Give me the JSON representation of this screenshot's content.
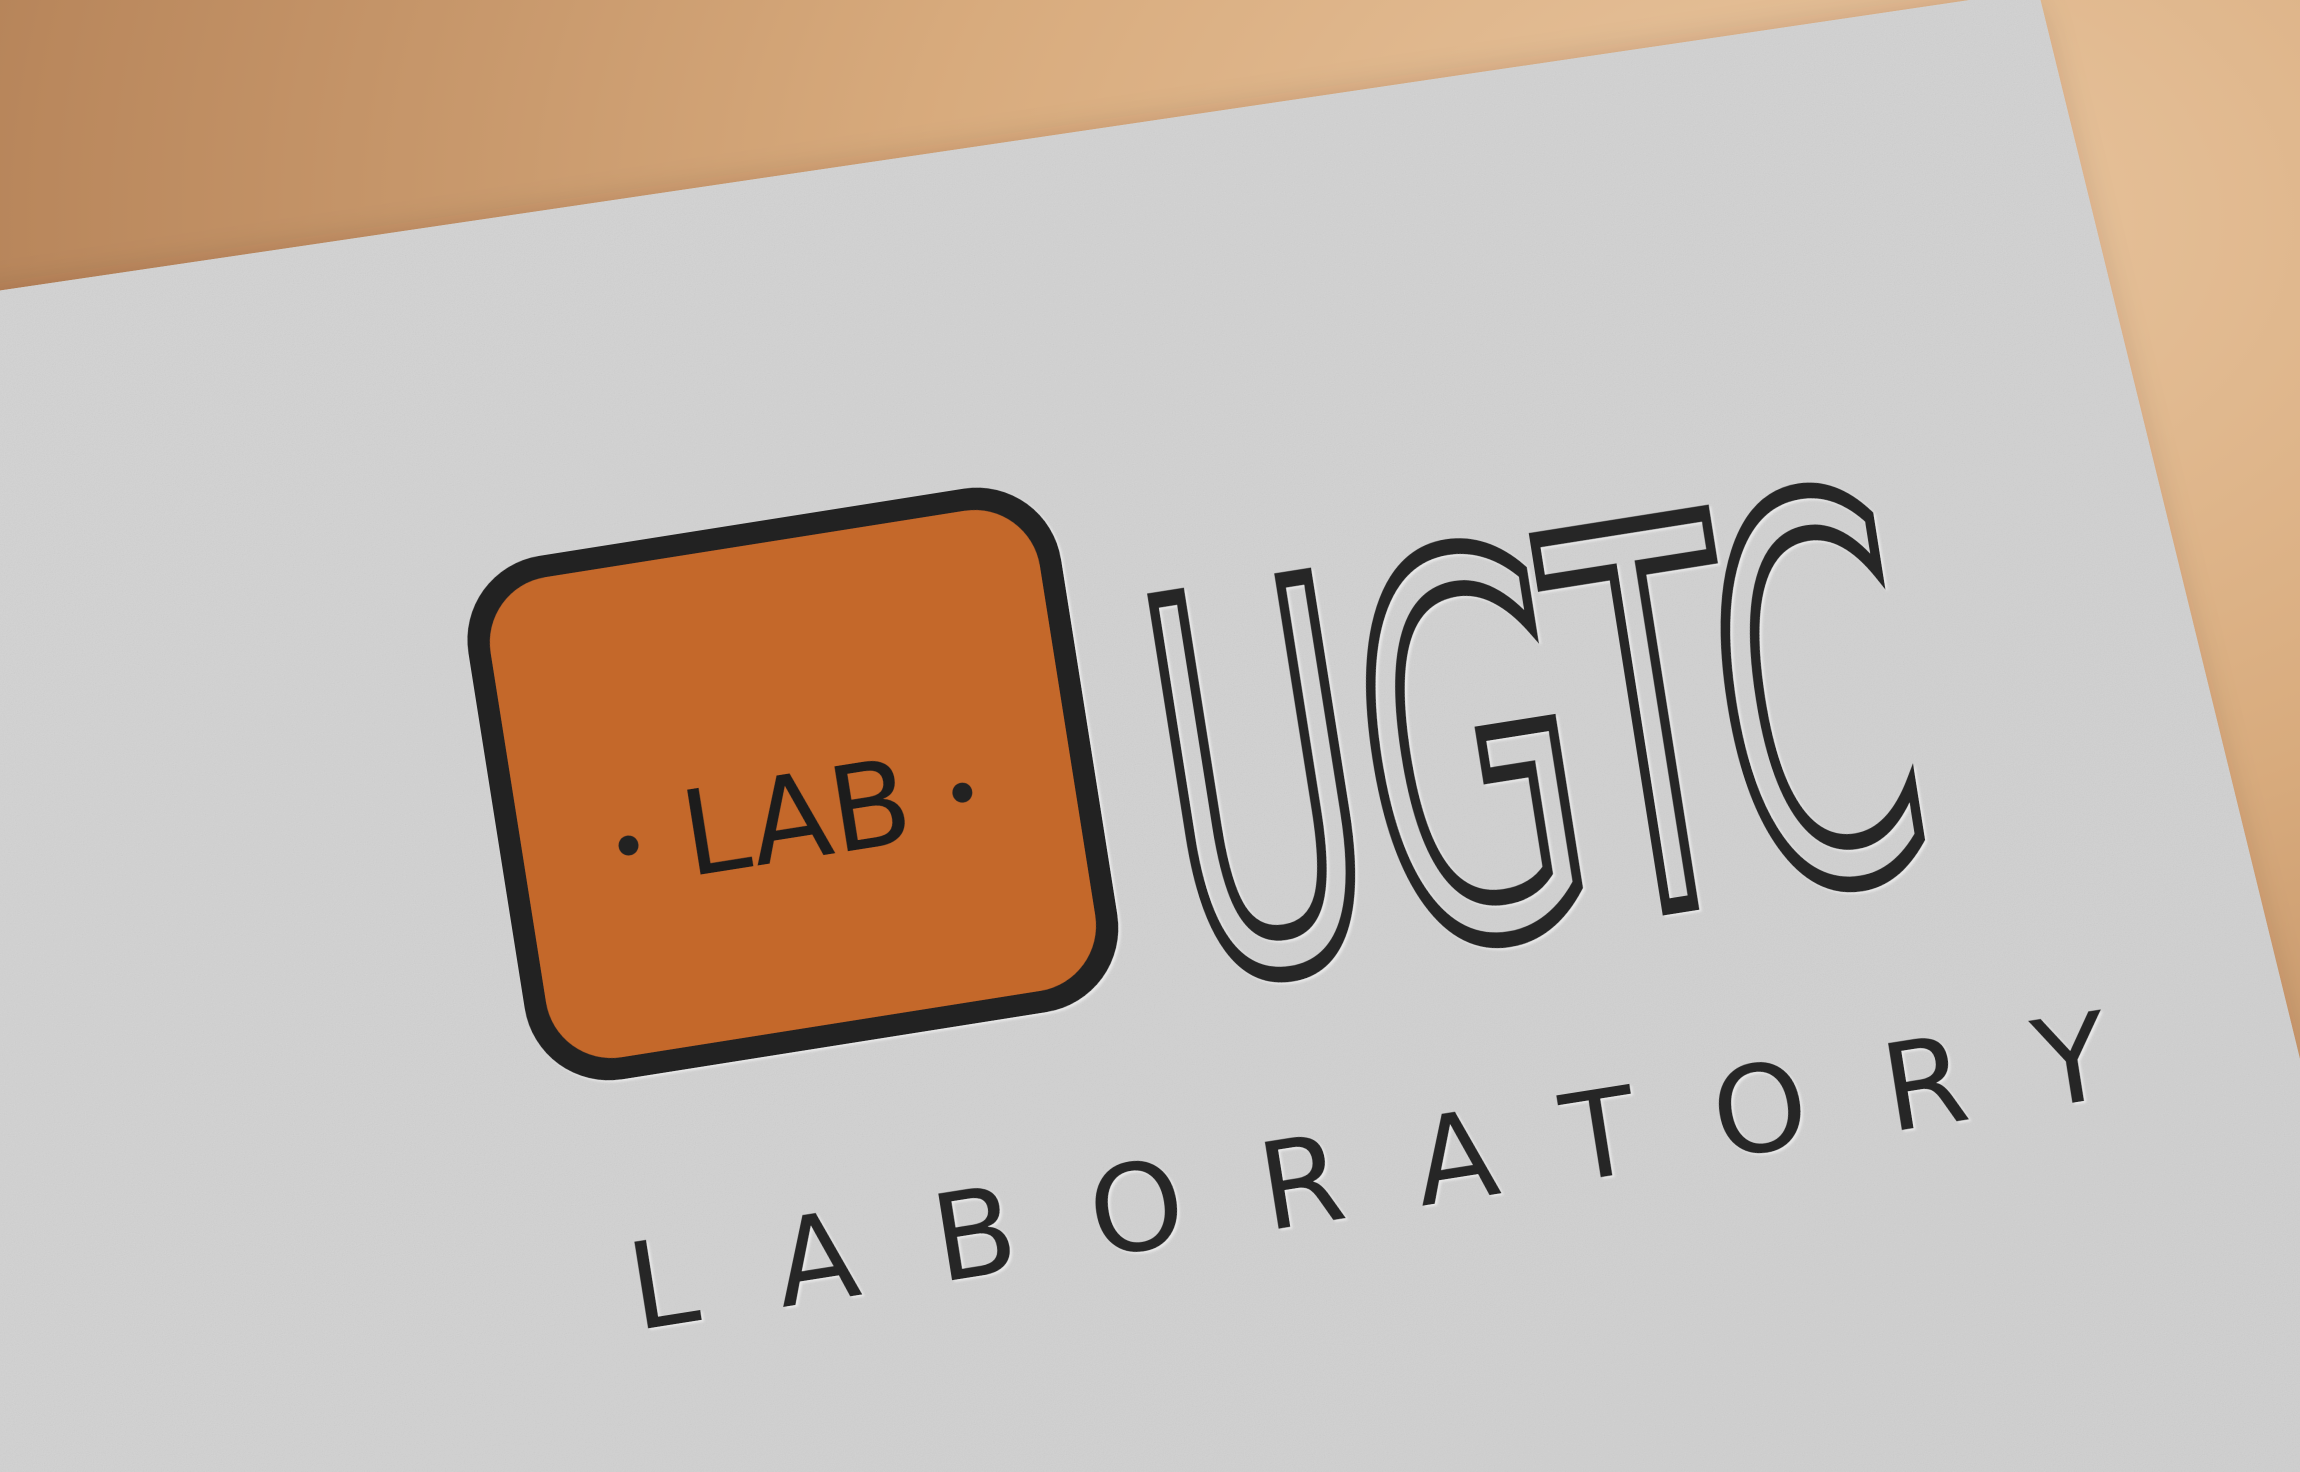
{
  "logo": {
    "badge_text": "LAB",
    "wordmark": "UGTC",
    "tagline": "LABORATORY"
  },
  "colors": {
    "background_warm": "#c99a6c",
    "paper": "#d7d7d7",
    "badge_fill": "#c4682b",
    "ink": "#2b2b2b"
  }
}
